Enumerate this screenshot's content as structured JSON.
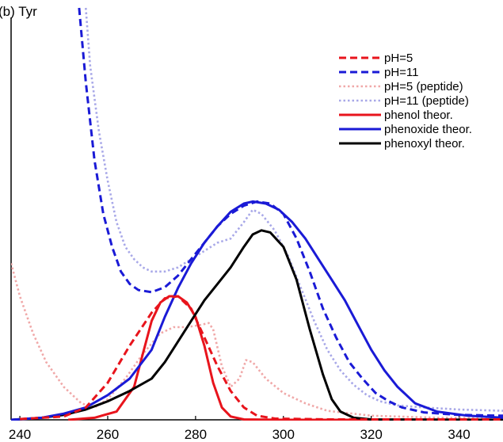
{
  "chart_data": {
    "type": "line",
    "title": "(b) Tyr",
    "xlabel": "",
    "ylabel": "",
    "xlim": [
      238,
      350
    ],
    "ylim": [
      0,
      1.0
    ],
    "x_ticks": [
      240,
      260,
      280,
      300,
      320,
      340
    ],
    "legend_position": "top-right",
    "series": [
      {
        "name": "pH=5",
        "color": "#e8141c",
        "dash": "dashed",
        "opacity": 1,
        "points": [
          [
            240,
            0.002
          ],
          [
            250,
            0.008
          ],
          [
            255,
            0.03
          ],
          [
            260,
            0.09
          ],
          [
            265,
            0.18
          ],
          [
            270,
            0.26
          ],
          [
            273,
            0.295
          ],
          [
            276,
            0.3
          ],
          [
            279,
            0.27
          ],
          [
            282,
            0.2
          ],
          [
            285,
            0.13
          ],
          [
            288,
            0.07
          ],
          [
            291,
            0.03
          ],
          [
            294,
            0.01
          ],
          [
            298,
            0.003
          ],
          [
            310,
            0.001
          ],
          [
            350,
            0.001
          ]
        ]
      },
      {
        "name": "pH=11",
        "color": "#1a1ad6",
        "dash": "dashed",
        "opacity": 1,
        "points": [
          [
            253.5,
            1.0
          ],
          [
            255,
            0.82
          ],
          [
            257,
            0.63
          ],
          [
            259,
            0.5
          ],
          [
            261,
            0.42
          ],
          [
            263,
            0.36
          ],
          [
            265,
            0.33
          ],
          [
            267,
            0.315
          ],
          [
            270,
            0.31
          ],
          [
            273,
            0.322
          ],
          [
            276,
            0.35
          ],
          [
            279,
            0.39
          ],
          [
            282,
            0.43
          ],
          [
            285,
            0.47
          ],
          [
            288,
            0.5
          ],
          [
            291,
            0.52
          ],
          [
            294,
            0.53
          ],
          [
            297,
            0.525
          ],
          [
            300,
            0.5
          ],
          [
            303,
            0.44
          ],
          [
            306,
            0.36
          ],
          [
            309,
            0.27
          ],
          [
            312,
            0.2
          ],
          [
            315,
            0.14
          ],
          [
            318,
            0.1
          ],
          [
            321,
            0.065
          ],
          [
            324,
            0.045
          ],
          [
            327,
            0.03
          ],
          [
            332,
            0.018
          ],
          [
            340,
            0.012
          ],
          [
            350,
            0.01
          ]
        ]
      },
      {
        "name": "pH=5 (peptide)",
        "color": "#f0a8a8",
        "dash": "dotted",
        "opacity": 1,
        "points": [
          [
            238,
            0.38
          ],
          [
            240,
            0.3
          ],
          [
            243,
            0.21
          ],
          [
            246,
            0.14
          ],
          [
            250,
            0.08
          ],
          [
            254,
            0.04
          ],
          [
            257,
            0.03
          ],
          [
            260,
            0.05
          ],
          [
            264,
            0.1
          ],
          [
            268,
            0.16
          ],
          [
            272,
            0.21
          ],
          [
            275,
            0.225
          ],
          [
            278,
            0.225
          ],
          [
            281,
            0.23
          ],
          [
            283,
            0.235
          ],
          [
            284,
            0.22
          ],
          [
            286,
            0.13
          ],
          [
            288,
            0.08
          ],
          [
            290,
            0.1
          ],
          [
            291.5,
            0.145
          ],
          [
            293,
            0.14
          ],
          [
            296,
            0.1
          ],
          [
            300,
            0.065
          ],
          [
            305,
            0.04
          ],
          [
            310,
            0.022
          ],
          [
            320,
            0.01
          ],
          [
            335,
            0.005
          ],
          [
            350,
            0.004
          ]
        ]
      },
      {
        "name": "pH=11 (peptide)",
        "color": "#a8a8e8",
        "dash": "dotted",
        "opacity": 1,
        "points": [
          [
            255,
            1.0
          ],
          [
            256,
            0.86
          ],
          [
            258,
            0.7
          ],
          [
            260,
            0.58
          ],
          [
            262,
            0.48
          ],
          [
            264,
            0.42
          ],
          [
            266,
            0.39
          ],
          [
            268,
            0.37
          ],
          [
            270,
            0.36
          ],
          [
            273,
            0.36
          ],
          [
            276,
            0.37
          ],
          [
            279,
            0.39
          ],
          [
            282,
            0.41
          ],
          [
            285,
            0.43
          ],
          [
            288,
            0.44
          ],
          [
            291,
            0.48
          ],
          [
            293,
            0.51
          ],
          [
            295,
            0.5
          ],
          [
            298,
            0.46
          ],
          [
            301,
            0.4
          ],
          [
            304,
            0.32
          ],
          [
            307,
            0.24
          ],
          [
            310,
            0.17
          ],
          [
            313,
            0.12
          ],
          [
            316,
            0.085
          ],
          [
            319,
            0.06
          ],
          [
            322,
            0.045
          ],
          [
            326,
            0.035
          ],
          [
            332,
            0.03
          ],
          [
            340,
            0.025
          ],
          [
            350,
            0.022
          ]
        ]
      },
      {
        "name": "phenol theor.",
        "color": "#e8141c",
        "dash": "solid",
        "opacity": 1,
        "points": [
          [
            251,
            0.0
          ],
          [
            257,
            0.005
          ],
          [
            262,
            0.02
          ],
          [
            266,
            0.08
          ],
          [
            268,
            0.16
          ],
          [
            270,
            0.24
          ],
          [
            272,
            0.285
          ],
          [
            274,
            0.3
          ],
          [
            276,
            0.3
          ],
          [
            278,
            0.285
          ],
          [
            280,
            0.25
          ],
          [
            282,
            0.18
          ],
          [
            284,
            0.09
          ],
          [
            286,
            0.03
          ],
          [
            288,
            0.008
          ],
          [
            291,
            0.001
          ],
          [
            300,
            0.0
          ],
          [
            350,
            0.0
          ]
        ]
      },
      {
        "name": "phenoxide theor.",
        "color": "#1a1ad6",
        "dash": "solid",
        "opacity": 1,
        "points": [
          [
            238,
            0.0
          ],
          [
            245,
            0.005
          ],
          [
            250,
            0.015
          ],
          [
            255,
            0.03
          ],
          [
            260,
            0.06
          ],
          [
            265,
            0.1
          ],
          [
            270,
            0.17
          ],
          [
            273,
            0.25
          ],
          [
            276,
            0.32
          ],
          [
            279,
            0.38
          ],
          [
            282,
            0.43
          ],
          [
            285,
            0.47
          ],
          [
            288,
            0.505
          ],
          [
            291,
            0.525
          ],
          [
            293,
            0.53
          ],
          [
            296,
            0.525
          ],
          [
            299,
            0.51
          ],
          [
            302,
            0.48
          ],
          [
            305,
            0.44
          ],
          [
            308,
            0.39
          ],
          [
            311,
            0.34
          ],
          [
            314,
            0.29
          ],
          [
            317,
            0.23
          ],
          [
            320,
            0.17
          ],
          [
            323,
            0.12
          ],
          [
            326,
            0.08
          ],
          [
            330,
            0.04
          ],
          [
            335,
            0.02
          ],
          [
            342,
            0.01
          ],
          [
            350,
            0.005
          ]
        ]
      },
      {
        "name": "phenoxyl theor.",
        "color": "#000000",
        "dash": "solid",
        "opacity": 1,
        "points": [
          [
            238,
            0.0
          ],
          [
            245,
            0.005
          ],
          [
            250,
            0.012
          ],
          [
            255,
            0.025
          ],
          [
            260,
            0.045
          ],
          [
            265,
            0.07
          ],
          [
            270,
            0.1
          ],
          [
            273,
            0.14
          ],
          [
            276,
            0.19
          ],
          [
            279,
            0.24
          ],
          [
            282,
            0.29
          ],
          [
            285,
            0.33
          ],
          [
            288,
            0.37
          ],
          [
            291,
            0.42
          ],
          [
            293,
            0.45
          ],
          [
            295,
            0.46
          ],
          [
            297,
            0.455
          ],
          [
            300,
            0.42
          ],
          [
            303,
            0.34
          ],
          [
            306,
            0.22
          ],
          [
            309,
            0.11
          ],
          [
            311,
            0.05
          ],
          [
            313,
            0.02
          ],
          [
            316,
            0.005
          ],
          [
            320,
            0.001
          ],
          [
            350,
            0.0
          ]
        ]
      }
    ]
  }
}
